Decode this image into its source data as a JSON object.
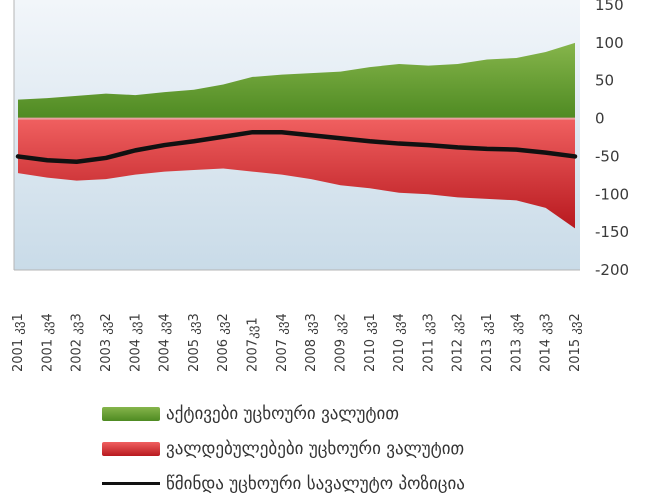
{
  "chart_data": {
    "type": "area",
    "title": "",
    "xlabel": "",
    "ylabel": "",
    "ylim": [
      -200,
      150
    ],
    "grid": false,
    "legend_position": "bottom",
    "y_ticks": [
      150,
      100,
      50,
      0,
      -50,
      -100,
      -150,
      -200
    ],
    "x_tick_labels": [
      "2001 კვ1",
      "2001 კვ4",
      "2002 კვ3",
      "2003 კვ2",
      "2004 კვ1",
      "2004 კვ4",
      "2005 კვ3",
      "2006 კვ2",
      "2007კვ1",
      "2007 კვ4",
      "2008 კვ3",
      "2009 კვ2",
      "2010 კვ1",
      "2010 კვ4",
      "2011 კვ3",
      "2012 კვ2",
      "2013 კვ1",
      "2013 კვ4",
      "2014 კვ3",
      "2015 კვ2"
    ],
    "series": [
      {
        "name": "აქტივები უცხოური ვალუტით",
        "kind": "area",
        "color": "#6fa03a",
        "values": [
          25,
          27,
          30,
          33,
          31,
          35,
          38,
          45,
          55,
          58,
          60,
          62,
          68,
          72,
          70,
          72,
          78,
          80,
          88,
          100
        ]
      },
      {
        "name": "ვალდებულებები უცხოური ვალუტით",
        "kind": "area",
        "color": "#d9343a",
        "values": [
          -72,
          -78,
          -82,
          -80,
          -74,
          -70,
          -68,
          -66,
          -70,
          -74,
          -80,
          -88,
          -92,
          -98,
          -100,
          -104,
          -106,
          -108,
          -118,
          -145
        ]
      },
      {
        "name": "წმინდა უცხოური სავალუტო პოზიცია",
        "kind": "line",
        "color": "#111111",
        "values": [
          -50,
          -55,
          -57,
          -52,
          -42,
          -35,
          -30,
          -24,
          -18,
          -18,
          -22,
          -26,
          -30,
          -33,
          -35,
          -38,
          -40,
          -41,
          -45,
          -50
        ]
      }
    ]
  }
}
